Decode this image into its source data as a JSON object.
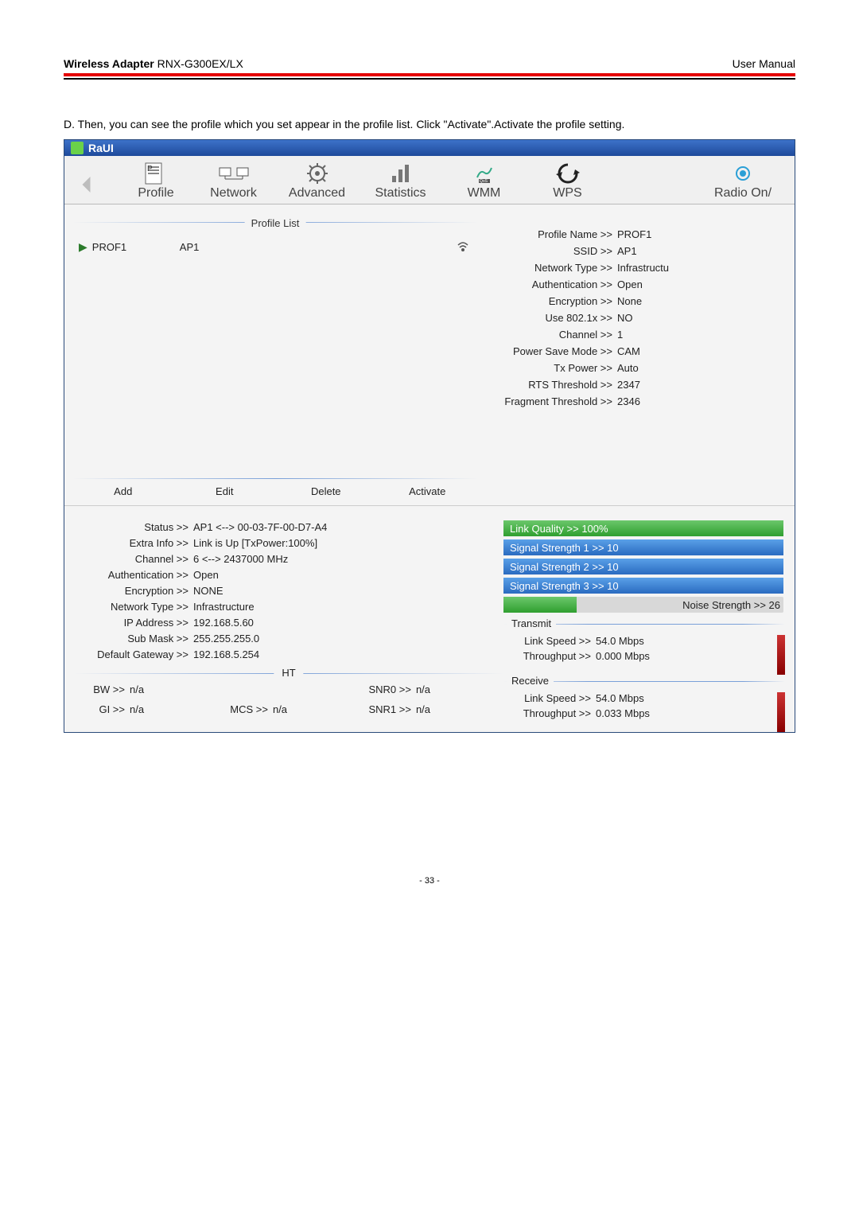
{
  "doc": {
    "header_left_bold": "Wireless Adapter",
    "header_left_model": " RNX-G300EX/LX",
    "header_right": "User Manual",
    "section_text": "D. Then, you can see the profile which you set appear in the profile list. Click \"Activate\".Activate the profile setting.",
    "page_number": "- 33 -"
  },
  "titlebar": {
    "title": "RaUI"
  },
  "toolbar": {
    "items": [
      "Profile",
      "Network",
      "Advanced",
      "Statistics",
      "WMM",
      "WPS"
    ],
    "radio": "Radio On/"
  },
  "profile_list": {
    "title": "Profile List",
    "rows": [
      {
        "name": "PROF1",
        "ssid": "AP1"
      }
    ],
    "buttons": {
      "add": "Add",
      "edit": "Edit",
      "delete": "Delete",
      "activate": "Activate"
    }
  },
  "details": {
    "rows": [
      {
        "label": "Profile Name >>",
        "value": "PROF1"
      },
      {
        "label": "SSID >>",
        "value": "AP1"
      },
      {
        "label": "Network Type >>",
        "value": "Infrastructu"
      },
      {
        "label": "Authentication >>",
        "value": "Open"
      },
      {
        "label": "Encryption >>",
        "value": "None"
      },
      {
        "label": "Use 802.1x >>",
        "value": "NO"
      },
      {
        "label": "Channel >>",
        "value": "1"
      },
      {
        "label": "Power Save Mode >>",
        "value": "CAM"
      },
      {
        "label": "Tx Power >>",
        "value": "Auto"
      },
      {
        "label": "RTS Threshold >>",
        "value": "2347"
      },
      {
        "label": "Fragment Threshold >>",
        "value": "2346"
      }
    ]
  },
  "status": {
    "rows": [
      {
        "label": "Status >>",
        "value": "AP1 <--> 00-03-7F-00-D7-A4"
      },
      {
        "label": "Extra Info >>",
        "value": "Link is Up [TxPower:100%]"
      },
      {
        "label": "Channel >>",
        "value": "6 <--> 2437000 MHz"
      },
      {
        "label": "Authentication >>",
        "value": "Open"
      },
      {
        "label": "Encryption >>",
        "value": "NONE"
      },
      {
        "label": "Network Type >>",
        "value": "Infrastructure"
      },
      {
        "label": "IP Address >>",
        "value": "192.168.5.60"
      },
      {
        "label": "Sub Mask >>",
        "value": "255.255.255.0"
      },
      {
        "label": "Default Gateway >>",
        "value": "192.168.5.254"
      }
    ],
    "ht_title": "HT",
    "ht": [
      {
        "label": "BW >>",
        "value": "n/a"
      },
      {
        "label": "",
        "value": ""
      },
      {
        "label": "SNR0 >>",
        "value": "n/a"
      },
      {
        "label": "GI >>",
        "value": "n/a"
      },
      {
        "label": "MCS >>",
        "value": "n/a"
      },
      {
        "label": "SNR1 >>",
        "value": "n/a"
      }
    ]
  },
  "bars": {
    "link_quality": {
      "label": "Link Quality >> 100%",
      "pct": 100,
      "color": "green"
    },
    "sig1": {
      "label": "Signal Strength 1 >> 10",
      "pct": 100,
      "color": "blue"
    },
    "sig2": {
      "label": "Signal Strength 2 >> 10",
      "pct": 100,
      "color": "blue"
    },
    "sig3": {
      "label": "Signal Strength 3 >> 10",
      "pct": 100,
      "color": "blue"
    },
    "noise": {
      "label": "Noise Strength >> 26",
      "pct": 26,
      "color": "green"
    }
  },
  "transmit": {
    "title": "Transmit",
    "link_speed_label": "Link Speed >>",
    "link_speed": "54.0 Mbps",
    "throughput_label": "Throughput >>",
    "throughput": "0.000 Mbps"
  },
  "receive": {
    "title": "Receive",
    "link_speed_label": "Link Speed >>",
    "link_speed": "54.0 Mbps",
    "throughput_label": "Throughput >>",
    "throughput": "0.033 Mbps"
  },
  "colors": {
    "header_red": "#e50000",
    "titlebar_blue": "#1e4a9b",
    "bar_green": "#2f9f2f",
    "bar_blue": "#2a6bc0",
    "bar_red": "#c33333"
  }
}
